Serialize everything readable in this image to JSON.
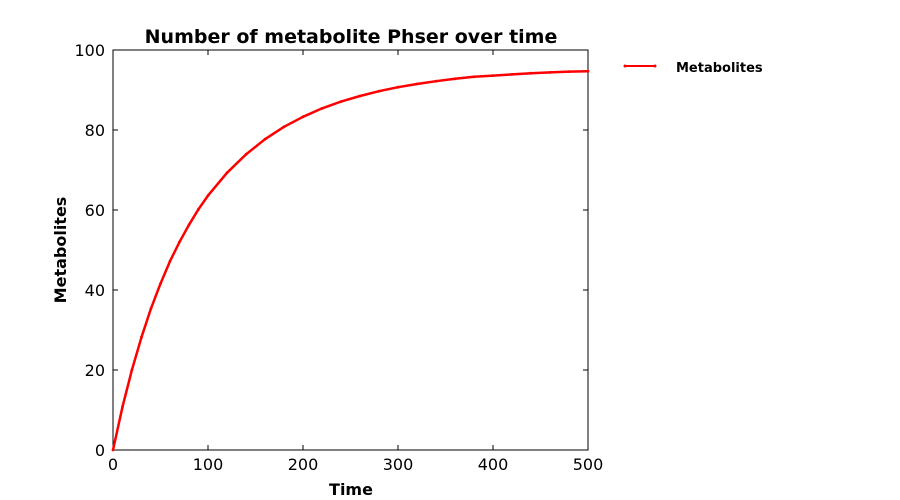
{
  "chart_data": {
    "type": "line",
    "title": "Number of metabolite Phser over time",
    "xlabel": "Time",
    "ylabel": "Metabolites",
    "xlim": [
      0,
      500
    ],
    "ylim": [
      0,
      100
    ],
    "xticks": [
      0,
      100,
      200,
      300,
      400,
      500
    ],
    "yticks": [
      0,
      20,
      40,
      60,
      80,
      100
    ],
    "grid": false,
    "legend_position": "outside-top-right",
    "series": [
      {
        "name": "Metabolites",
        "color": "#ff0000",
        "x": [
          0,
          10,
          20,
          30,
          40,
          50,
          60,
          70,
          80,
          90,
          100,
          120,
          140,
          160,
          180,
          200,
          220,
          240,
          260,
          280,
          300,
          320,
          340,
          360,
          380,
          400,
          420,
          440,
          460,
          480,
          500
        ],
        "y": [
          0,
          10.8,
          20.1,
          28.2,
          35.4,
          41.6,
          47.2,
          52.0,
          56.3,
          60.2,
          63.6,
          69.3,
          73.9,
          77.7,
          80.8,
          83.3,
          85.4,
          87.1,
          88.5,
          89.7,
          90.7,
          91.5,
          92.2,
          92.8,
          93.3,
          93.6,
          93.9,
          94.2,
          94.4,
          94.6,
          94.7
        ]
      }
    ]
  }
}
